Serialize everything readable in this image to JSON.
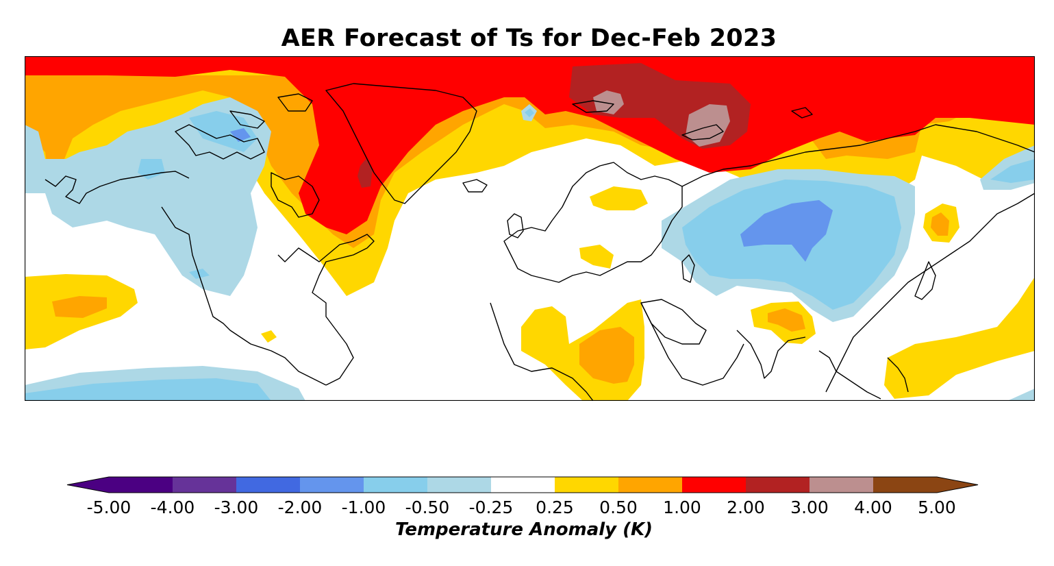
{
  "title": "AER Forecast of Ts for Dec-Feb 2023",
  "colorbar": {
    "label": "Temperature Anomaly (K)",
    "ticks": [
      "-5.00",
      "-4.00",
      "-3.00",
      "-2.00",
      "-1.00",
      "-0.50",
      "-0.25",
      "0.25",
      "0.50",
      "1.00",
      "2.00",
      "3.00",
      "4.00",
      "5.00"
    ],
    "colors": [
      "#4b0082",
      "#663399",
      "#4169e1",
      "#6495ed",
      "#87ceeb",
      "#add8e6",
      "#ffffff",
      "#ffd700",
      "#ffa500",
      "#ff0000",
      "#b22222",
      "#bc8f8f",
      "#8b4513"
    ],
    "under_color": "#4b0082",
    "over_color": "#8b4513"
  },
  "palette": {
    "lightblue": "#add8e6",
    "skyblue": "#87ceeb",
    "cornflower": "#6495ed",
    "royal": "#4169e1",
    "gold": "#ffd700",
    "orange": "#ffa500",
    "red": "#ff0000",
    "firebrick": "#b22222",
    "rosy": "#bc8f8f",
    "coast": "#000000"
  }
}
